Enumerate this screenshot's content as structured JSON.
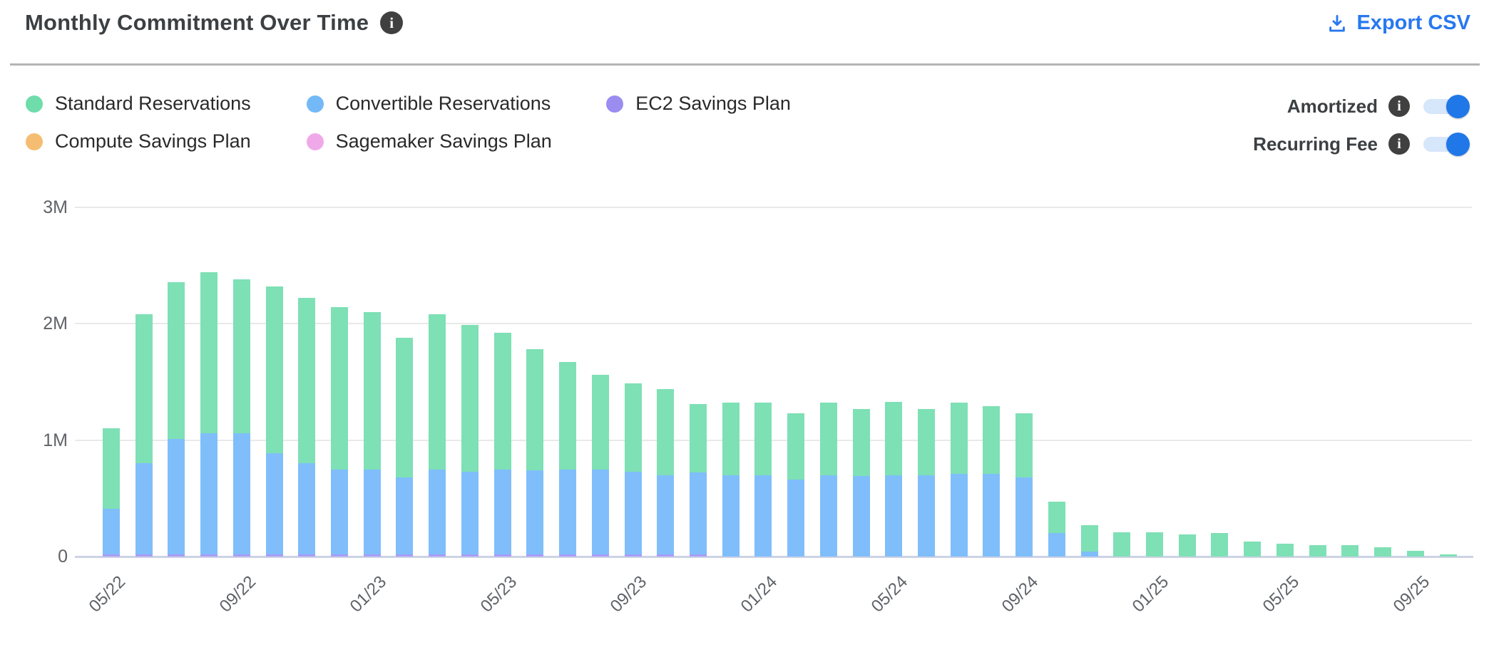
{
  "header": {
    "title": "Monthly Commitment Over Time",
    "title_info_icon": "i",
    "export_label": "Export CSV"
  },
  "legend": {
    "items": [
      {
        "label": "Standard Reservations",
        "color": "#6fdcab"
      },
      {
        "label": "Convertible Reservations",
        "color": "#74b9f7"
      },
      {
        "label": "EC2 Savings Plan",
        "color": "#9b8cf0"
      },
      {
        "label": "Compute Savings Plan",
        "color": "#f5bd72"
      },
      {
        "label": "Sagemaker Savings Plan",
        "color": "#f0a9e8"
      }
    ]
  },
  "toggles": [
    {
      "label": "Amortized",
      "state": "on"
    },
    {
      "label": "Recurring Fee",
      "state": "on"
    }
  ],
  "chart_data": {
    "type": "bar",
    "stacked": true,
    "title": "Monthly Commitment Over Time",
    "unit": "USD, millions",
    "ylim_millions": [
      0,
      3
    ],
    "y_ticks": [
      "0",
      "1M",
      "2M",
      "3M"
    ],
    "grid": "horizontal",
    "legend_position": "top-left",
    "x_tick_every": 4,
    "x_tick_labels": [
      "05/22",
      "09/22",
      "01/23",
      "05/23",
      "09/23",
      "01/24",
      "05/24",
      "09/24",
      "01/25",
      "05/25",
      "09/25"
    ],
    "categories": [
      "05/22",
      "06/22",
      "07/22",
      "08/22",
      "09/22",
      "10/22",
      "11/22",
      "12/22",
      "01/23",
      "02/23",
      "03/23",
      "04/23",
      "05/23",
      "06/23",
      "07/23",
      "08/23",
      "09/23",
      "10/23",
      "11/23",
      "12/23",
      "01/24",
      "02/24",
      "03/24",
      "04/24",
      "05/24",
      "06/24",
      "07/24",
      "08/24",
      "09/24",
      "10/24",
      "11/24",
      "12/24",
      "01/25",
      "02/25",
      "03/25",
      "04/25",
      "05/25",
      "06/25",
      "07/25",
      "08/25",
      "09/25",
      "10/25"
    ],
    "stack_order_bottom_to_top": [
      "EC2 Savings Plan",
      "Convertible Reservations",
      "Standard Reservations"
    ],
    "series": [
      {
        "name": "Standard Reservations",
        "color": "#7ee0b5",
        "values_millions": [
          0.69,
          1.28,
          1.35,
          1.38,
          1.32,
          1.43,
          1.42,
          1.39,
          1.35,
          1.2,
          1.33,
          1.26,
          1.17,
          1.04,
          0.92,
          0.81,
          0.76,
          0.74,
          0.59,
          0.62,
          0.62,
          0.57,
          0.62,
          0.58,
          0.63,
          0.57,
          0.61,
          0.58,
          0.55,
          0.27,
          0.23,
          0.21,
          0.21,
          0.19,
          0.2,
          0.13,
          0.11,
          0.1,
          0.1,
          0.08,
          0.05,
          0.02
        ]
      },
      {
        "name": "Convertible Reservations",
        "color": "#7fbefb",
        "values_millions": [
          0.39,
          0.78,
          0.99,
          1.04,
          1.04,
          0.87,
          0.78,
          0.73,
          0.73,
          0.66,
          0.73,
          0.71,
          0.73,
          0.72,
          0.73,
          0.73,
          0.71,
          0.68,
          0.7,
          0.7,
          0.7,
          0.66,
          0.7,
          0.69,
          0.7,
          0.7,
          0.71,
          0.71,
          0.68,
          0.2,
          0.04,
          0,
          0,
          0,
          0,
          0,
          0,
          0,
          0,
          0,
          0,
          0
        ]
      },
      {
        "name": "EC2 Savings Plan",
        "color": "#aa9cf7",
        "values_millions": [
          0.02,
          0.02,
          0.02,
          0.02,
          0.02,
          0.02,
          0.02,
          0.02,
          0.02,
          0.02,
          0.02,
          0.02,
          0.02,
          0.02,
          0.02,
          0.02,
          0.02,
          0.02,
          0.02,
          0,
          0,
          0,
          0,
          0,
          0,
          0,
          0,
          0,
          0,
          0,
          0,
          0,
          0,
          0,
          0,
          0,
          0,
          0,
          0,
          0,
          0,
          0
        ]
      },
      {
        "name": "Compute Savings Plan",
        "color": "#f5bd72",
        "values_millions": [
          0,
          0,
          0,
          0,
          0,
          0,
          0,
          0,
          0,
          0,
          0,
          0,
          0,
          0,
          0,
          0,
          0,
          0,
          0,
          0,
          0,
          0,
          0,
          0,
          0,
          0,
          0,
          0,
          0,
          0,
          0,
          0,
          0,
          0,
          0,
          0,
          0,
          0,
          0,
          0,
          0,
          0
        ]
      },
      {
        "name": "Sagemaker Savings Plan",
        "color": "#f0a9e8",
        "values_millions": [
          0,
          0,
          0,
          0,
          0,
          0,
          0,
          0,
          0,
          0,
          0,
          0,
          0,
          0,
          0,
          0,
          0,
          0,
          0,
          0,
          0,
          0,
          0,
          0,
          0,
          0,
          0,
          0,
          0,
          0,
          0,
          0,
          0,
          0,
          0,
          0,
          0,
          0,
          0,
          0,
          0,
          0
        ]
      }
    ]
  }
}
